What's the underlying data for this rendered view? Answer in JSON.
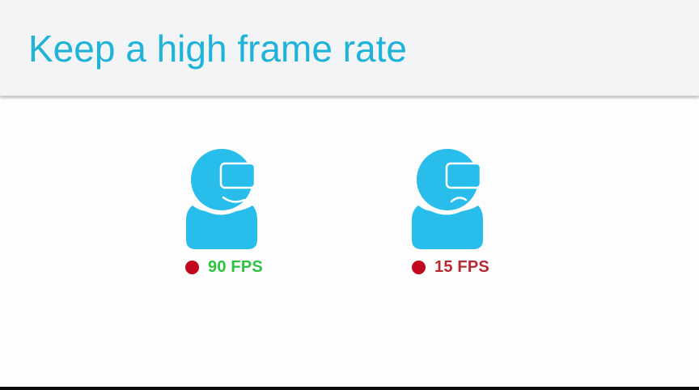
{
  "slide": {
    "title": "Keep a high frame rate"
  },
  "colors": {
    "title": "#1fb3d9",
    "figure": "#29bdec",
    "status_dot": "#c1081e",
    "good_fps": "#2cc33f",
    "bad_fps": "#b52a33",
    "header_bg": "#f3f4f6"
  },
  "viewers": [
    {
      "icon": "vr-headset-user-happy-icon",
      "mood": "happy",
      "fps_label": "90 FPS"
    },
    {
      "icon": "vr-headset-user-sad-icon",
      "mood": "sad",
      "fps_label": "15 FPS"
    }
  ]
}
